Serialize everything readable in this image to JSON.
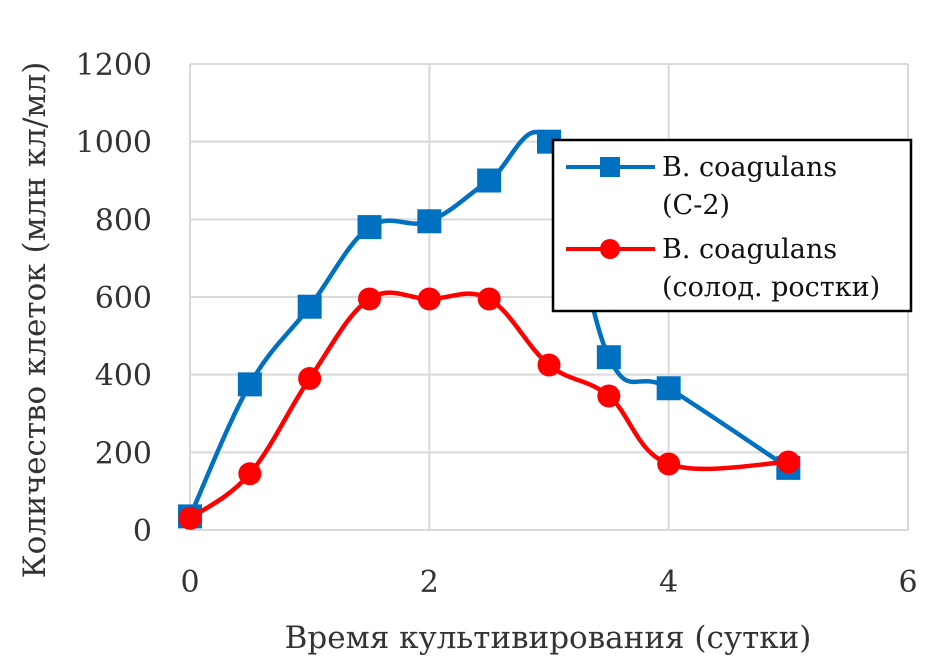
{
  "chart_data": {
    "type": "line",
    "xlabel": "Время культивирования  (сутки)",
    "ylabel": "Количество клеток (млн кл/мл)",
    "xlim": [
      0,
      6
    ],
    "ylim": [
      0,
      1200
    ],
    "xticks": [
      0,
      2,
      4,
      6
    ],
    "yticks": [
      0,
      200,
      400,
      600,
      800,
      1000,
      1200
    ],
    "grid": true,
    "legend_position": "top-right",
    "series": [
      {
        "name_lines": [
          "B. coagulans",
          "(С-2)"
        ],
        "color": "#0070c0",
        "marker": "square",
        "x": [
          0,
          0.5,
          1,
          1.5,
          2,
          2.5,
          3,
          3.5,
          4,
          5
        ],
        "y": [
          35,
          375,
          575,
          780,
          795,
          900,
          1000,
          445,
          365,
          160
        ]
      },
      {
        "name_lines": [
          "B. coagulans",
          "(солод. ростки)"
        ],
        "color": "#ff0000",
        "marker": "circle",
        "x": [
          0,
          0.5,
          1,
          1.5,
          2,
          2.5,
          3,
          3.5,
          4,
          5
        ],
        "y": [
          30,
          145,
          390,
          595,
          595,
          595,
          425,
          345,
          170,
          175
        ]
      }
    ]
  }
}
